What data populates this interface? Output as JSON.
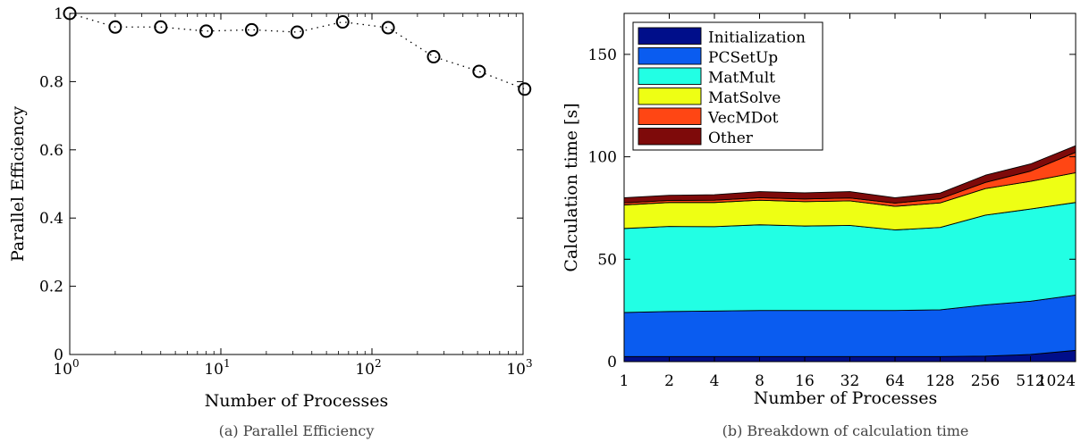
{
  "chart_data": [
    {
      "type": "scatter",
      "caption": "(a) Parallel Efficiency",
      "xlabel": "Number of Processes",
      "ylabel": "Parallel Efficiency",
      "x_scale": "log",
      "xlim": [
        1,
        1000
      ],
      "ylim": [
        0,
        1
      ],
      "x_ticks": [
        {
          "value": 1,
          "base": "10",
          "exp": "0"
        },
        {
          "value": 10,
          "base": "10",
          "exp": "1"
        },
        {
          "value": 100,
          "base": "10",
          "exp": "2"
        },
        {
          "value": 1000,
          "base": "10",
          "exp": "3"
        }
      ],
      "y_ticks": [
        "0",
        "0.2",
        "0.4",
        "0.6",
        "0.8",
        "1"
      ],
      "grid": false,
      "marker": "circle",
      "line_style": "dotted",
      "points": [
        {
          "x": 1,
          "y": 1.0
        },
        {
          "x": 2,
          "y": 0.96
        },
        {
          "x": 4,
          "y": 0.96
        },
        {
          "x": 8,
          "y": 0.948
        },
        {
          "x": 16,
          "y": 0.952
        },
        {
          "x": 32,
          "y": 0.945
        },
        {
          "x": 64,
          "y": 0.975
        },
        {
          "x": 128,
          "y": 0.958
        },
        {
          "x": 256,
          "y": 0.873
        },
        {
          "x": 512,
          "y": 0.83
        },
        {
          "x": 1024,
          "y": 0.778
        }
      ]
    },
    {
      "type": "area",
      "stacked": true,
      "caption": "(b) Breakdown of calculation time",
      "xlabel": "Number of Processes",
      "ylabel": "Calculation time [s]",
      "categories": [
        "1",
        "2",
        "4",
        "8",
        "16",
        "32",
        "64",
        "128",
        "256",
        "512",
        "1024"
      ],
      "ylim": [
        0,
        170
      ],
      "y_ticks": [
        "0",
        "50",
        "100",
        "150"
      ],
      "grid": false,
      "legend_position": "top-left",
      "series": [
        {
          "name": "Initialization",
          "color": "#000e8a",
          "values": [
            2.5,
            2.5,
            2.5,
            2.5,
            2.5,
            2.5,
            2.5,
            2.5,
            2.7,
            3.5,
            5.5
          ]
        },
        {
          "name": "PCSetUp",
          "color": "#0a5cf0",
          "values": [
            21.5,
            22.0,
            22.2,
            22.5,
            22.5,
            22.5,
            22.5,
            22.8,
            25.0,
            26.0,
            27.0
          ]
        },
        {
          "name": "MatMult",
          "color": "#22ffe4",
          "values": [
            41.0,
            41.5,
            41.2,
            41.8,
            41.2,
            41.5,
            39.3,
            40.2,
            43.8,
            45.0,
            45.2
          ]
        },
        {
          "name": "MatSolve",
          "color": "#eeff14",
          "values": [
            11.5,
            11.7,
            11.8,
            12.0,
            11.9,
            12.0,
            11.5,
            12.0,
            13.0,
            13.5,
            14.5
          ]
        },
        {
          "name": "VecMDot",
          "color": "#ff4614",
          "values": [
            1.0,
            1.0,
            1.1,
            1.2,
            1.3,
            1.4,
            1.6,
            2.0,
            3.0,
            5.0,
            10.0
          ]
        },
        {
          "name": "Other",
          "color": "#7e0a0a",
          "values": [
            2.5,
            2.5,
            2.7,
            3.0,
            3.0,
            3.1,
            2.6,
            2.8,
            3.5,
            3.5,
            3.2
          ]
        }
      ]
    }
  ]
}
